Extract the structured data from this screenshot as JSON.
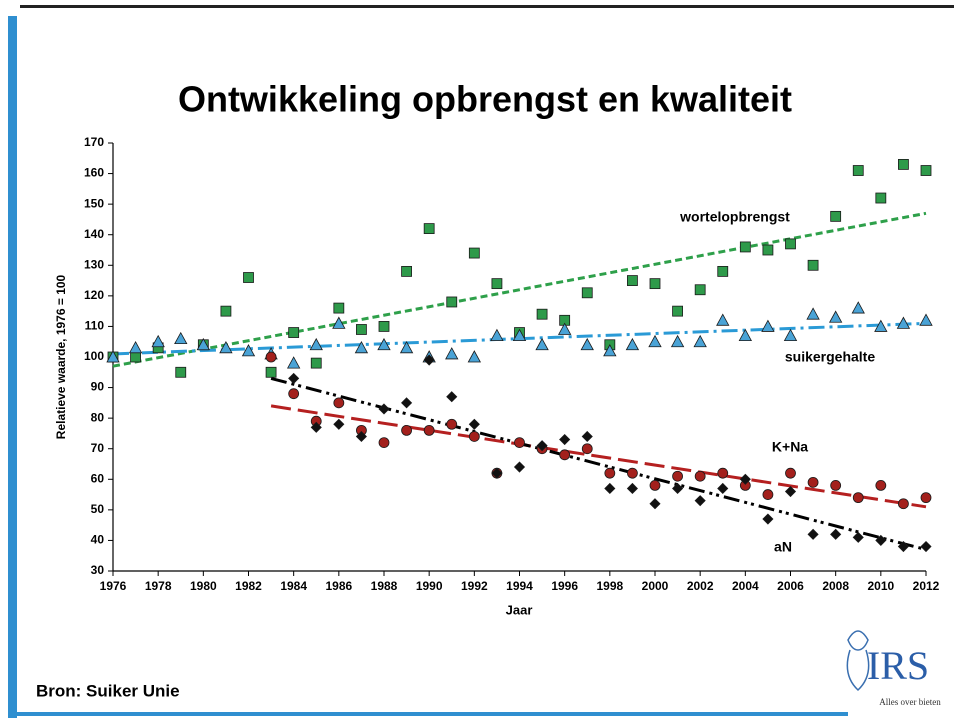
{
  "chart_data": {
    "type": "scatter",
    "title": "Ontwikkeling opbrengst en kwaliteit",
    "xlabel": "Jaar",
    "ylabel": "Relatieve waarde, 1976 = 100",
    "xlim": [
      1976,
      2012
    ],
    "xticks": [
      1976,
      1978,
      1980,
      1982,
      1984,
      1986,
      1988,
      1990,
      1992,
      1994,
      1996,
      1998,
      2000,
      2002,
      2004,
      2006,
      2008,
      2010,
      2012
    ],
    "ylim": [
      30,
      170
    ],
    "yticks": [
      30,
      40,
      50,
      60,
      70,
      80,
      90,
      100,
      110,
      120,
      130,
      140,
      150,
      160,
      170
    ],
    "series": [
      {
        "name": "wortelopbrengst",
        "color": "#2e9a4a",
        "marker": "square",
        "x": [
          1976,
          1977,
          1978,
          1979,
          1980,
          1981,
          1982,
          1983,
          1984,
          1985,
          1986,
          1987,
          1988,
          1989,
          1990,
          1991,
          1992,
          1993,
          1994,
          1995,
          1996,
          1997,
          1998,
          1999,
          2000,
          2001,
          2002,
          2003,
          2004,
          2005,
          2006,
          2007,
          2008,
          2009,
          2010,
          2011,
          2012
        ],
        "values": [
          100,
          100,
          103,
          95,
          104,
          115,
          126,
          95,
          108,
          98,
          116,
          109,
          110,
          128,
          142,
          118,
          134,
          124,
          108,
          114,
          112,
          121,
          104,
          125,
          124,
          115,
          122,
          128,
          136,
          135,
          137,
          130,
          146,
          161,
          152,
          163,
          161
        ]
      },
      {
        "name": "suikergehalte",
        "color": "#4aa3d6",
        "marker": "triangle",
        "x": [
          1976,
          1977,
          1978,
          1979,
          1980,
          1981,
          1982,
          1983,
          1984,
          1985,
          1986,
          1987,
          1988,
          1989,
          1990,
          1991,
          1992,
          1993,
          1994,
          1995,
          1996,
          1997,
          1998,
          1999,
          2000,
          2001,
          2002,
          2003,
          2004,
          2005,
          2006,
          2007,
          2008,
          2009,
          2010,
          2011,
          2012
        ],
        "values": [
          100,
          103,
          105,
          106,
          104,
          103,
          102,
          101,
          98,
          104,
          111,
          103,
          104,
          103,
          100,
          101,
          100,
          107,
          107,
          104,
          109,
          104,
          102,
          104,
          105,
          105,
          105,
          112,
          107,
          110,
          107,
          114,
          113,
          116,
          110,
          111,
          112
        ]
      },
      {
        "name": "K+Na",
        "color": "#a3201c",
        "marker": "circle",
        "x": [
          1983,
          1984,
          1985,
          1986,
          1987,
          1988,
          1989,
          1990,
          1991,
          1992,
          1993,
          1994,
          1995,
          1996,
          1997,
          1998,
          1999,
          2000,
          2001,
          2002,
          2003,
          2004,
          2005,
          2006,
          2007,
          2008,
          2009,
          2010,
          2011,
          2012
        ],
        "values": [
          100,
          88,
          79,
          85,
          76,
          72,
          76,
          76,
          78,
          74,
          62,
          72,
          70,
          68,
          70,
          62,
          62,
          58,
          61,
          61,
          62,
          58,
          55,
          62,
          59,
          58,
          54,
          58,
          52,
          54
        ]
      },
      {
        "name": "aN",
        "color": "#111111",
        "marker": "diamond",
        "x": [
          1984,
          1985,
          1986,
          1987,
          1988,
          1989,
          1990,
          1991,
          1992,
          1993,
          1994,
          1995,
          1996,
          1997,
          1998,
          1999,
          2000,
          2001,
          2002,
          2003,
          2004,
          2005,
          2006,
          2007,
          2008,
          2009,
          2010,
          2011,
          2012
        ],
        "values": [
          93,
          77,
          78,
          74,
          83,
          85,
          99,
          87,
          78,
          62,
          64,
          71,
          73,
          74,
          57,
          57,
          52,
          57,
          53,
          57,
          60,
          47,
          56,
          42,
          42,
          41,
          40,
          38,
          38
        ]
      }
    ],
    "trendlines": [
      {
        "color": "#2ea04a",
        "x": [
          1976,
          2012
        ],
        "values": [
          97,
          147
        ]
      },
      {
        "color": "#2a9ad6",
        "x": [
          1976,
          2012
        ],
        "values": [
          101,
          111
        ]
      },
      {
        "color": "#b52020",
        "x": [
          1983,
          2012
        ],
        "values": [
          84,
          51
        ]
      },
      {
        "color": "#000000",
        "x": [
          1983,
          2012
        ],
        "values": [
          93,
          37
        ]
      }
    ]
  },
  "source": "Bron: Suiker Unie",
  "logo": {
    "text": "IRS",
    "tagline": "Alles over bieten"
  }
}
